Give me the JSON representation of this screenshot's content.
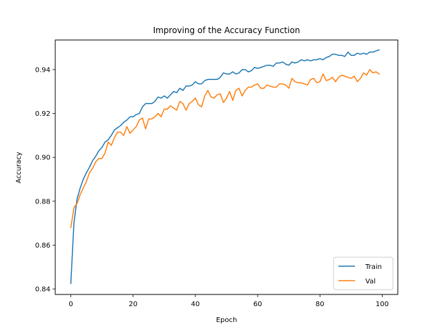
{
  "chart_data": {
    "type": "line",
    "title": "Improving of the Accuracy Function",
    "xlabel": "Epoch",
    "ylabel": "Accuracy",
    "xlim": [
      -5,
      105
    ],
    "ylim": [
      0.8375,
      0.9535
    ],
    "xticks": [
      0,
      20,
      40,
      60,
      80,
      100
    ],
    "yticks": [
      0.84,
      0.86,
      0.88,
      0.9,
      0.92,
      0.94
    ],
    "ytick_labels": [
      "0.84",
      "0.86",
      "0.88",
      "0.90",
      "0.92",
      "0.94"
    ],
    "grid": false,
    "legend_position": "lower-right",
    "x": [
      0,
      1,
      2,
      3,
      4,
      5,
      6,
      7,
      8,
      9,
      10,
      11,
      12,
      13,
      14,
      15,
      16,
      17,
      18,
      19,
      20,
      21,
      22,
      23,
      24,
      25,
      26,
      27,
      28,
      29,
      30,
      31,
      32,
      33,
      34,
      35,
      36,
      37,
      38,
      39,
      40,
      41,
      42,
      43,
      44,
      45,
      46,
      47,
      48,
      49,
      50,
      51,
      52,
      53,
      54,
      55,
      56,
      57,
      58,
      59,
      60,
      61,
      62,
      63,
      64,
      65,
      66,
      67,
      68,
      69,
      70,
      71,
      72,
      73,
      74,
      75,
      76,
      77,
      78,
      79,
      80,
      81,
      82,
      83,
      84,
      85,
      86,
      87,
      88,
      89,
      90,
      91,
      92,
      93,
      94,
      95,
      96,
      97,
      98,
      99
    ],
    "series": [
      {
        "name": "Train",
        "color": "#1f77b4",
        "values": [
          0.8425,
          0.87,
          0.881,
          0.886,
          0.89,
          0.893,
          0.8955,
          0.8985,
          0.9005,
          0.903,
          0.9045,
          0.907,
          0.908,
          0.91,
          0.9125,
          0.9135,
          0.9145,
          0.916,
          0.917,
          0.9185,
          0.9185,
          0.9195,
          0.92,
          0.923,
          0.9245,
          0.9245,
          0.9245,
          0.9255,
          0.9275,
          0.927,
          0.928,
          0.927,
          0.9285,
          0.93,
          0.9295,
          0.9315,
          0.9305,
          0.9325,
          0.9325,
          0.933,
          0.9345,
          0.9335,
          0.9335,
          0.935,
          0.9355,
          0.9355,
          0.9355,
          0.9355,
          0.9365,
          0.9385,
          0.938,
          0.938,
          0.939,
          0.938,
          0.9385,
          0.94,
          0.94,
          0.939,
          0.9395,
          0.941,
          0.9405,
          0.941,
          0.9415,
          0.942,
          0.942,
          0.9415,
          0.943,
          0.943,
          0.9435,
          0.9425,
          0.942,
          0.9435,
          0.943,
          0.9435,
          0.9445,
          0.944,
          0.9445,
          0.944,
          0.9445,
          0.9445,
          0.945,
          0.9445,
          0.9455,
          0.946,
          0.947,
          0.947,
          0.9465,
          0.9465,
          0.946,
          0.948,
          0.9465,
          0.9465,
          0.9475,
          0.947,
          0.9475,
          0.947,
          0.948,
          0.948,
          0.9485,
          0.949
        ]
      },
      {
        "name": "Val",
        "color": "#ff7f0e",
        "values": [
          0.868,
          0.877,
          0.879,
          0.883,
          0.886,
          0.889,
          0.893,
          0.895,
          0.898,
          0.8995,
          0.8995,
          0.902,
          0.907,
          0.9055,
          0.909,
          0.9115,
          0.9115,
          0.91,
          0.914,
          0.911,
          0.9125,
          0.914,
          0.917,
          0.918,
          0.913,
          0.9175,
          0.9175,
          0.9185,
          0.92,
          0.9185,
          0.922,
          0.922,
          0.9235,
          0.9225,
          0.9215,
          0.9255,
          0.9245,
          0.9215,
          0.9245,
          0.9255,
          0.927,
          0.924,
          0.923,
          0.928,
          0.9305,
          0.9275,
          0.927,
          0.9285,
          0.929,
          0.925,
          0.927,
          0.93,
          0.926,
          0.9305,
          0.9315,
          0.928,
          0.9305,
          0.932,
          0.932,
          0.933,
          0.9335,
          0.9315,
          0.9315,
          0.933,
          0.9325,
          0.932,
          0.932,
          0.9335,
          0.9335,
          0.933,
          0.9315,
          0.936,
          0.9345,
          0.934,
          0.934,
          0.9335,
          0.933,
          0.9355,
          0.936,
          0.934,
          0.9345,
          0.938,
          0.935,
          0.9355,
          0.9365,
          0.9345,
          0.9365,
          0.9375,
          0.937,
          0.9365,
          0.936,
          0.937,
          0.9345,
          0.936,
          0.9385,
          0.9375,
          0.94,
          0.9385,
          0.939,
          0.938
        ]
      }
    ]
  }
}
